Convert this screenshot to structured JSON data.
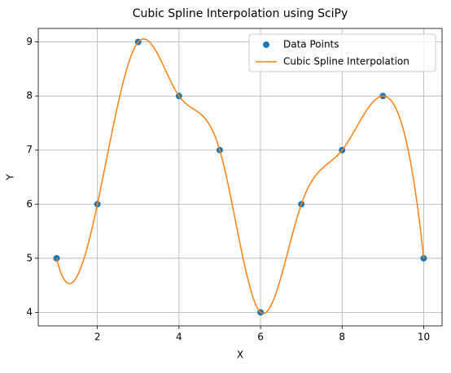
{
  "chart_data": {
    "type": "line",
    "title": "Cubic Spline Interpolation using SciPy",
    "x_label": "X",
    "y_label": "Y",
    "x": [
      1,
      2,
      3,
      4,
      5,
      6,
      7,
      8,
      9,
      10
    ],
    "series": [
      {
        "name": "Data Points",
        "color": "#1f77b4",
        "marker": "o",
        "values": [
          5,
          6,
          9,
          8,
          7,
          4,
          6,
          7,
          8,
          5
        ]
      },
      {
        "name": "Cubic Spline Interpolation",
        "color": "#ff7f0e",
        "curve": "cubic-spline",
        "values": [
          5,
          6,
          9,
          8,
          7,
          4,
          6,
          7,
          8,
          5
        ]
      }
    ],
    "xlim": [
      0.55,
      10.45
    ],
    "ylim": [
      3.75,
      9.25
    ],
    "xticks": [
      2,
      4,
      6,
      8,
      10
    ],
    "yticks": [
      4,
      5,
      6,
      7,
      8,
      9
    ],
    "grid": true,
    "legend": "upper right"
  }
}
